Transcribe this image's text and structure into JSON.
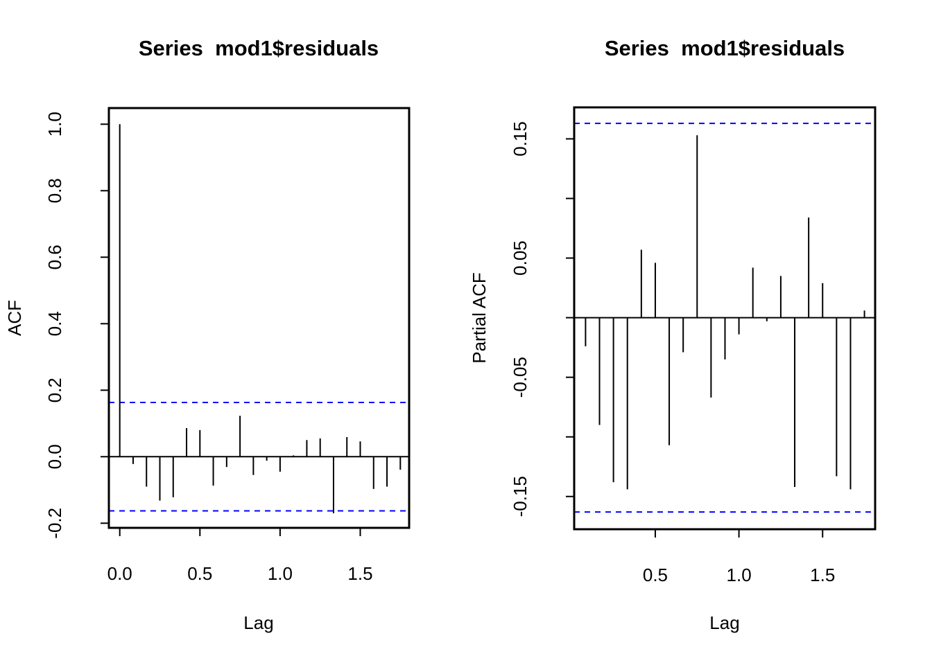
{
  "figure": {
    "background_color": "#ffffff",
    "spike_color": "#000000",
    "box_color": "#000000",
    "confidence_band_color": "#0000ff"
  },
  "chart_data": [
    {
      "type": "bar",
      "subtype": "acf-spike-plot",
      "title": "Series  mod1$residuals",
      "xlabel": "Lag",
      "ylabel": "ACF",
      "grid": false,
      "legend": "none",
      "xlim": [
        -0.073,
        1.823
      ],
      "ylim": [
        -0.215,
        1.047
      ],
      "confidence_band": 0.163,
      "confidence_band_style": "blue-dashed",
      "x_ticks": [
        {
          "value": 0.0,
          "label": "0.0"
        },
        {
          "value": 0.5,
          "label": "0.5"
        },
        {
          "value": 1.0,
          "label": "1.0"
        },
        {
          "value": 1.5,
          "label": "1.5"
        }
      ],
      "y_ticks": [
        {
          "value": 1.0,
          "label": "1.0"
        },
        {
          "value": 0.8,
          "label": "0.8"
        },
        {
          "value": 0.6,
          "label": "0.6"
        },
        {
          "value": 0.4,
          "label": "0.4"
        },
        {
          "value": 0.2,
          "label": "0.2"
        },
        {
          "value": 0.0,
          "label": "0.0"
        },
        {
          "value": -0.2,
          "label": "-0.2"
        }
      ],
      "x": [
        0,
        0.0833,
        0.1667,
        0.25,
        0.3333,
        0.4167,
        0.5,
        0.5833,
        0.6667,
        0.75,
        0.8333,
        0.9167,
        1.0,
        1.0833,
        1.1667,
        1.25,
        1.3333,
        1.4167,
        1.5,
        1.5833,
        1.6667,
        1.75
      ],
      "values": [
        1.0,
        -0.022,
        -0.09,
        -0.132,
        -0.122,
        0.086,
        0.08,
        -0.087,
        -0.031,
        0.123,
        -0.055,
        -0.012,
        -0.045,
        0.004,
        0.05,
        0.055,
        -0.17,
        0.059,
        0.046,
        -0.097,
        -0.09,
        -0.039
      ]
    },
    {
      "type": "bar",
      "subtype": "pacf-spike-plot",
      "title": "Series  mod1$residuals",
      "xlabel": "Lag",
      "ylabel": "Partial ACF",
      "grid": false,
      "legend": "none",
      "xlim": [
        0.016,
        1.817
      ],
      "ylim": [
        -0.178,
        0.178
      ],
      "confidence_band": 0.163,
      "confidence_band_style": "blue-dashed",
      "x_ticks": [
        {
          "value": 0.5,
          "label": "0.5"
        },
        {
          "value": 1.0,
          "label": "1.0"
        },
        {
          "value": 1.5,
          "label": "1.5"
        }
      ],
      "y_ticks": [
        {
          "value": 0.15,
          "label": "0.15"
        },
        {
          "value": 0.1,
          "label": ""
        },
        {
          "value": 0.05,
          "label": "0.05"
        },
        {
          "value": 0.0,
          "label": ""
        },
        {
          "value": -0.05,
          "label": "-0.05"
        },
        {
          "value": -0.1,
          "label": ""
        },
        {
          "value": -0.15,
          "label": "-0.15"
        }
      ],
      "x": [
        0.0833,
        0.1667,
        0.25,
        0.3333,
        0.4167,
        0.5,
        0.5833,
        0.6667,
        0.75,
        0.8333,
        0.9167,
        1.0,
        1.0833,
        1.1667,
        1.25,
        1.3333,
        1.4167,
        1.5,
        1.5833,
        1.6667,
        1.75
      ],
      "values": [
        -0.024,
        -0.09,
        -0.138,
        -0.144,
        0.057,
        0.046,
        -0.107,
        -0.029,
        0.153,
        -0.067,
        -0.035,
        -0.014,
        0.042,
        -0.003,
        0.035,
        -0.142,
        0.084,
        0.029,
        -0.133,
        -0.144,
        0.006
      ]
    }
  ]
}
